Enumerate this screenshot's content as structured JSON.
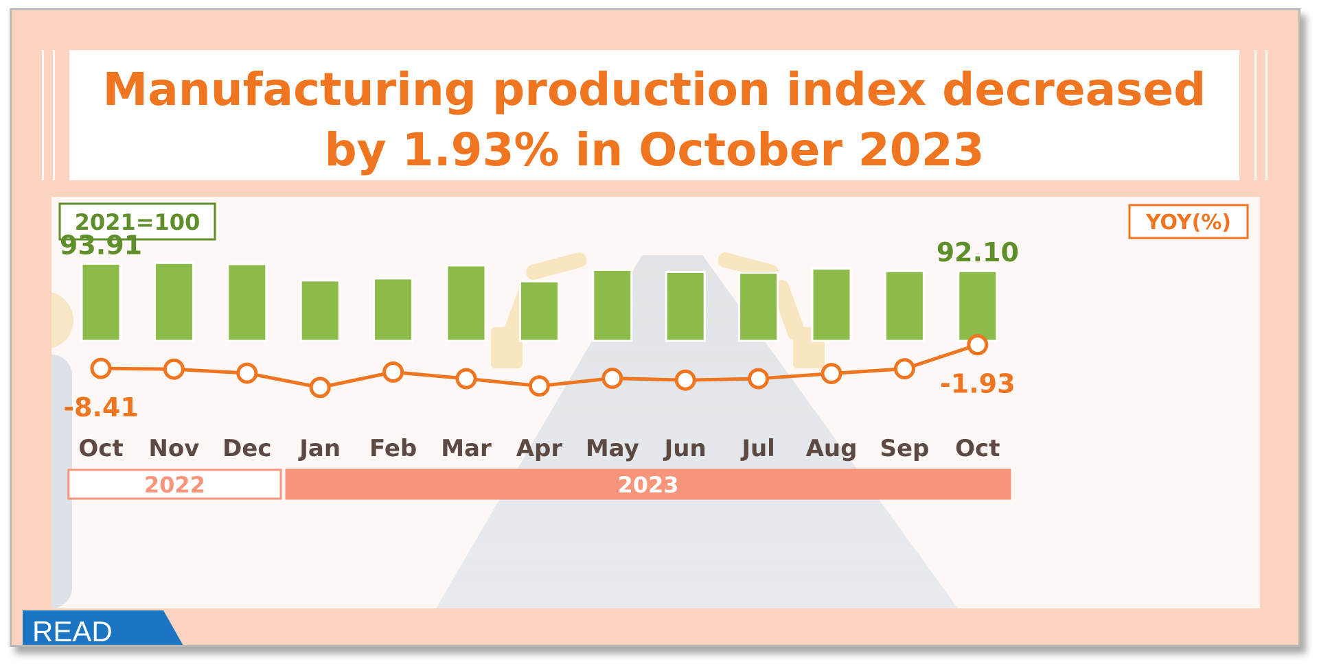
{
  "title": {
    "line1": "Manufacturing  production index decreased",
    "line2": "by 1.93%  in October  2023"
  },
  "index_base_label": "2021=100",
  "yoy_label": "YOY(%)",
  "read_label": "READ",
  "colors": {
    "bar": "#8dbb4a",
    "line": "#ef7521",
    "year_2022": "#ffffff",
    "year_2023": "#f7947a",
    "label_green": "#5e8f2a",
    "label_orange": "#ef7521"
  },
  "chart_data": {
    "type": "bar",
    "categories": [
      "Oct",
      "Nov",
      "Dec",
      "Jan",
      "Feb",
      "Mar",
      "Apr",
      "May",
      "Jun",
      "Jul",
      "Aug",
      "Sep",
      "Oct"
    ],
    "years": [
      {
        "label": "2022",
        "span": 3
      },
      {
        "label": "2023",
        "span": 10
      }
    ],
    "series": [
      {
        "name": "2021=100",
        "values": [
          93.91,
          94.1,
          93.8,
          89.8,
          90.3,
          93.5,
          89.6,
          92.4,
          91.9,
          91.7,
          92.7,
          92.1,
          92.1
        ],
        "labels": [
          "93.91",
          "",
          "",
          "",
          "",
          "",
          "",
          "",
          "",
          "",
          "",
          "",
          "92.10"
        ]
      },
      {
        "name": "YOY(%)",
        "type": "line",
        "values": [
          -8.41,
          -8.6,
          -9.7,
          -13.6,
          -9.4,
          -11.2,
          -13.2,
          -11.1,
          -11.6,
          -11.2,
          -9.8,
          -8.5,
          -1.93
        ],
        "labels": [
          "-8.41",
          "",
          "",
          "",
          "",
          "",
          "",
          "",
          "",
          "",
          "",
          "",
          "-1.93"
        ]
      }
    ],
    "bar_ylim": [
      75,
      96
    ],
    "line_ylim": [
      -14,
      -2
    ],
    "grid": false
  }
}
